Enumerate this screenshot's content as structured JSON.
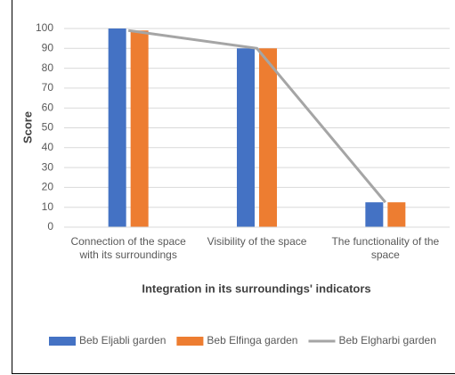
{
  "chart_data": {
    "type": "bar",
    "categories": [
      "Connection of the space with its surroundings",
      "Visibility of the space",
      "The functionality of the space"
    ],
    "series": [
      {
        "name": "Beb Eljabli garden",
        "color": "#4472c4",
        "type": "bar",
        "values": [
          100,
          90,
          12.5
        ]
      },
      {
        "name": "Beb Elfinga garden",
        "color": "#ed7d31",
        "type": "bar",
        "values": [
          99,
          90,
          12.5
        ]
      },
      {
        "name": "Beb Elgharbi garden",
        "color": "#a5a5a5",
        "type": "line",
        "values": [
          99,
          90,
          12.5
        ]
      }
    ],
    "y_label": "Score",
    "x_label": "Integration in its surroundings' indicators",
    "ylim": [
      0,
      100
    ],
    "yticks": [
      0,
      10,
      20,
      30,
      40,
      50,
      60,
      70,
      80,
      90,
      100
    ],
    "grid": true,
    "legend": "bottom"
  }
}
